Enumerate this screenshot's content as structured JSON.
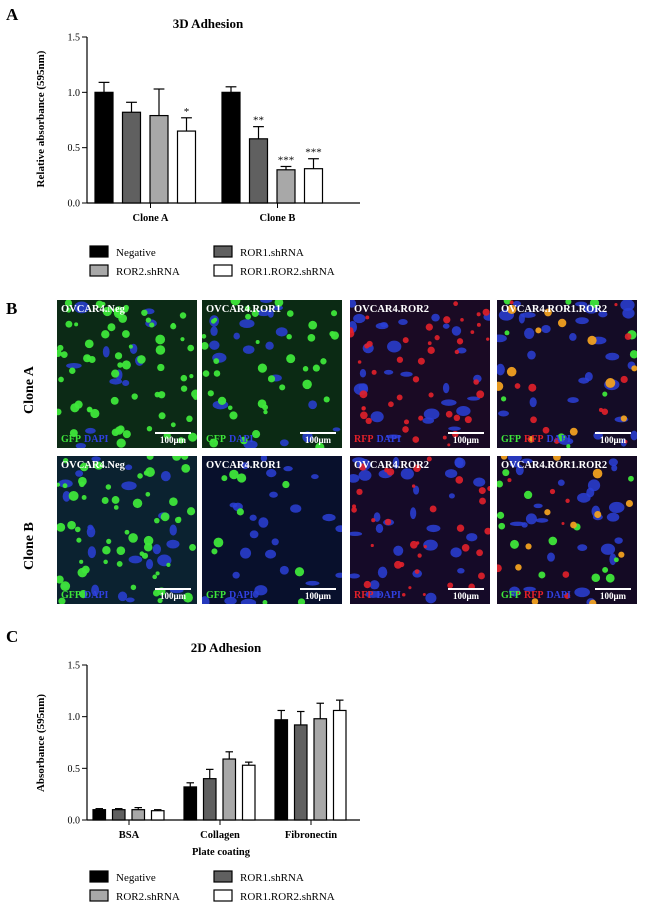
{
  "panel_labels": {
    "a": "A",
    "b": "B",
    "c": "C"
  },
  "colors": {
    "negative": "#000000",
    "ror1": "#606060",
    "ror2": "#a8a8a8",
    "ror12": "#ffffff"
  },
  "legend": [
    "Negative",
    "ROR1.shRNA",
    "ROR2.shRNA",
    "ROR1.ROR2.shRNA"
  ],
  "chart_data": [
    {
      "type": "bar",
      "title": "3D Adhesion",
      "ylabel": "Relative absorbance (595nm)",
      "xlabel": "",
      "ylim": [
        0,
        1.5
      ],
      "yticks": [
        "0.0",
        "0.5",
        "1.0",
        "1.5"
      ],
      "categories": [
        "Clone A",
        "Clone B"
      ],
      "series": [
        {
          "name": "Negative",
          "values": [
            1.0,
            1.0
          ],
          "errors": [
            0.09,
            0.05
          ],
          "sig": [
            "",
            ""
          ]
        },
        {
          "name": "ROR1.shRNA",
          "values": [
            0.82,
            0.58
          ],
          "errors": [
            0.09,
            0.11
          ],
          "sig": [
            "",
            "**"
          ]
        },
        {
          "name": "ROR2.shRNA",
          "values": [
            0.79,
            0.3
          ],
          "errors": [
            0.24,
            0.03
          ],
          "sig": [
            "",
            "***"
          ]
        },
        {
          "name": "ROR1.ROR2.shRNA",
          "values": [
            0.65,
            0.31
          ],
          "errors": [
            0.12,
            0.09
          ],
          "sig": [
            "*",
            "***"
          ]
        }
      ]
    },
    {
      "type": "bar",
      "title": "2D Adhesion",
      "ylabel": "Absorbance (595nm)",
      "xlabel": "Plate coating",
      "ylim": [
        0,
        1.5
      ],
      "yticks": [
        "0.0",
        "0.5",
        "1.0",
        "1.5"
      ],
      "categories": [
        "BSA",
        "Collagen",
        "Fibronectin"
      ],
      "series": [
        {
          "name": "Negative",
          "values": [
            0.1,
            0.32,
            0.97
          ],
          "errors": [
            0.01,
            0.04,
            0.09
          ]
        },
        {
          "name": "ROR1.shRNA",
          "values": [
            0.1,
            0.4,
            0.92
          ],
          "errors": [
            0.01,
            0.09,
            0.13
          ]
        },
        {
          "name": "ROR2.shRNA",
          "values": [
            0.1,
            0.59,
            0.98
          ],
          "errors": [
            0.02,
            0.07,
            0.15
          ]
        },
        {
          "name": "ROR1.ROR2.shRNA",
          "values": [
            0.09,
            0.53,
            1.06
          ],
          "errors": [
            0.01,
            0.03,
            0.1
          ]
        }
      ]
    }
  ],
  "microscopy": {
    "rows": [
      "Clone A",
      "Clone B"
    ],
    "columns": [
      "OVCAR4.Neg",
      "OVCAR4.ROR1",
      "OVCAR4.ROR2",
      "OVCAR4.ROR1.ROR2"
    ],
    "scale_bar": "100μm",
    "stains": [
      [
        {
          "green": "GFP",
          "red": "",
          "blue": "DAPI"
        },
        {
          "green": "GFP",
          "red": "",
          "blue": "DAPI"
        },
        {
          "green": "",
          "red": "RFP",
          "blue": "DAPI"
        },
        {
          "green": "GFP",
          "red": "RFP",
          "blue": "DAPI"
        }
      ],
      [
        {
          "green": "GFP",
          "red": "",
          "blue": "DAPI"
        },
        {
          "green": "GFP",
          "red": "",
          "blue": "DAPI"
        },
        {
          "green": "",
          "red": "RFP",
          "blue": "DAPI"
        },
        {
          "green": "GFP",
          "red": "RFP",
          "blue": "DAPI"
        }
      ]
    ]
  }
}
